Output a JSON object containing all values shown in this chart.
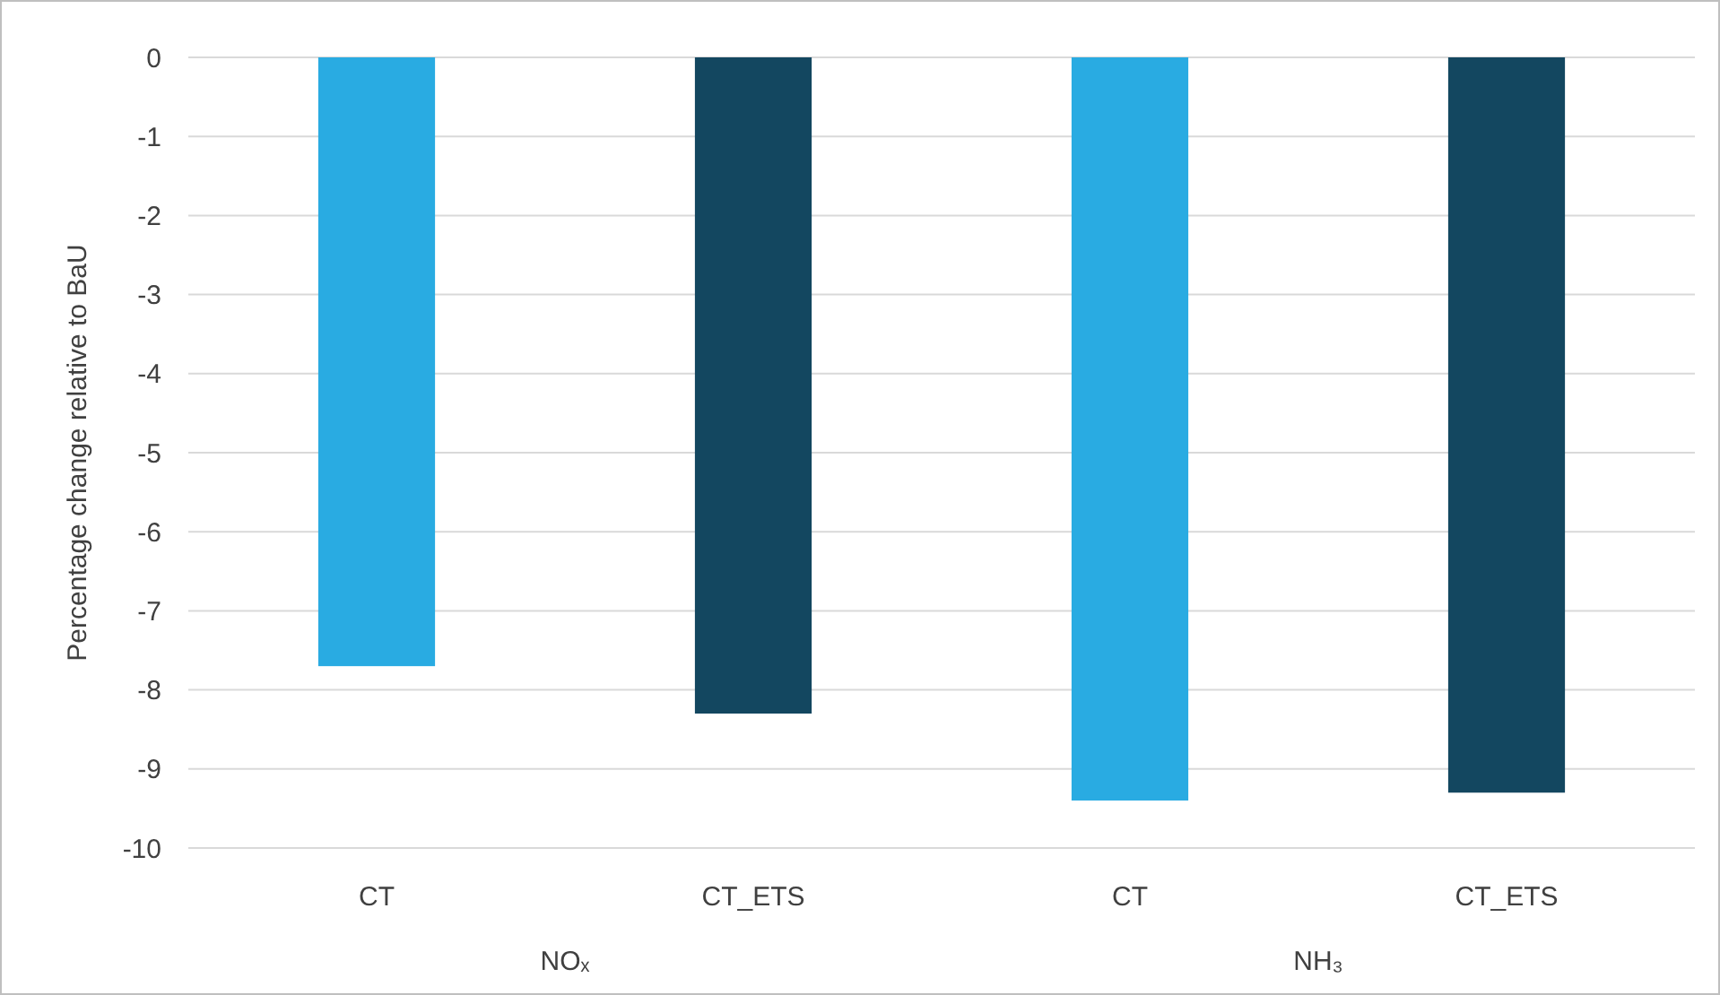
{
  "chart_data": {
    "type": "bar",
    "ylabel": "Percentage change relative to BaU",
    "categories": [
      "CT",
      "CT_ETS",
      "CT",
      "CT_ETS"
    ],
    "values": [
      -7.7,
      -8.3,
      -9.4,
      -9.3
    ],
    "colors": [
      "#29abe2",
      "#134760",
      "#29abe2",
      "#134760"
    ],
    "ylim": [
      -10,
      0
    ],
    "yticks": [
      0,
      -1,
      -2,
      -3,
      -4,
      -5,
      -6,
      -7,
      -8,
      -9,
      -10
    ],
    "grid": "y",
    "annotations": [
      "NOₓ",
      "NH₃"
    ]
  }
}
